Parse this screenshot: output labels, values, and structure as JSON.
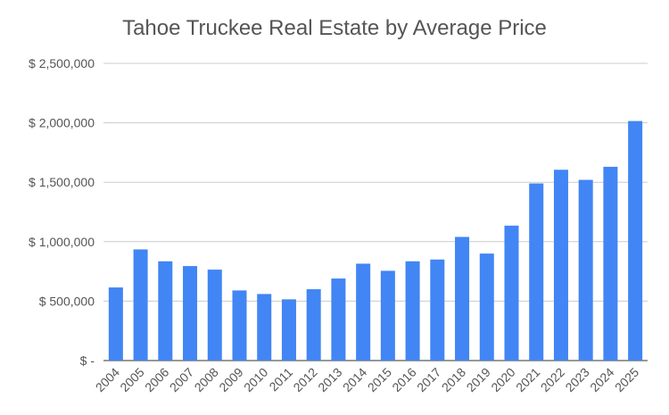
{
  "chart_data": {
    "type": "bar",
    "title": "Tahoe Truckee Real Estate by Average Price",
    "xlabel": "",
    "ylabel": "",
    "categories": [
      "2004",
      "2005",
      "2006",
      "2007",
      "2008",
      "2009",
      "2010",
      "2011",
      "2012",
      "2013",
      "2014",
      "2015",
      "2016",
      "2017",
      "2018",
      "2019",
      "2020",
      "2021",
      "2022",
      "2023",
      "2024",
      "2025"
    ],
    "values": [
      615000,
      935000,
      835000,
      795000,
      765000,
      590000,
      560000,
      515000,
      600000,
      690000,
      815000,
      755000,
      835000,
      850000,
      1040000,
      900000,
      1135000,
      1490000,
      1605000,
      1520000,
      1630000,
      2015000
    ],
    "ylim": [
      0,
      2500000
    ],
    "y_ticks": [
      0,
      500000,
      1000000,
      1500000,
      2000000,
      2500000
    ],
    "y_tick_labels": [
      "$ -",
      "$ 500,000",
      "$ 1,000,000",
      "$ 1,500,000",
      "$ 2,000,000",
      "$ 2,500,000"
    ],
    "grid": true,
    "legend": "none",
    "bar_color": "#4285f4",
    "grid_color": "#cccccc"
  }
}
